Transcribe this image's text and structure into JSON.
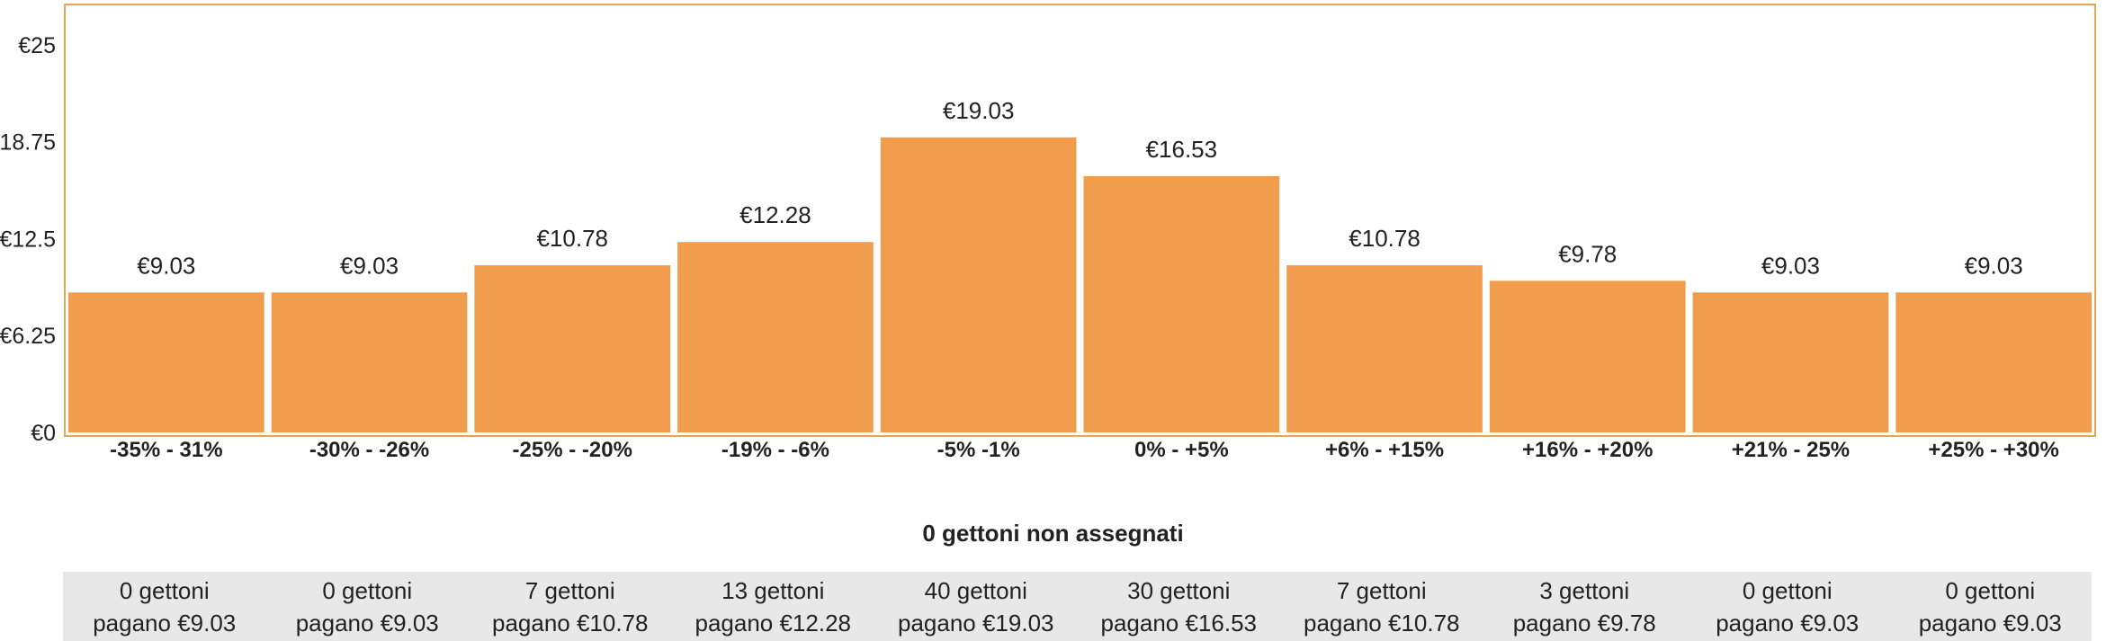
{
  "chart_data": {
    "type": "bar",
    "categories": [
      "-35% - 31%",
      "-30% - -26%",
      "-25% - -20%",
      "-19% - -6%",
      "-5% -1%",
      "0% - +5%",
      "+6% - +15%",
      "+16% - +20%",
      "+21% - 25%",
      "+25% - +30%"
    ],
    "values": [
      9.03,
      9.03,
      10.78,
      12.28,
      19.03,
      16.53,
      10.78,
      9.78,
      9.03,
      9.03
    ],
    "value_labels": [
      "€9.03",
      "€9.03",
      "€10.78",
      "€12.28",
      "€19.03",
      "€16.53",
      "€10.78",
      "€9.78",
      "€9.03",
      "€9.03"
    ],
    "yticks": [
      0,
      6.25,
      12.5,
      18.75,
      25
    ],
    "ytick_labels": [
      "€0",
      "€6.25",
      "€12.5",
      "€18.75",
      "€25"
    ],
    "ylim": [
      0,
      27.6
    ],
    "bar_color": "#f09e4d",
    "frame_color": "#e8a64d",
    "grid": false,
    "legend": "none"
  },
  "summary": "0 gettoni non assegnati",
  "token_cells": [
    {
      "count": "0 gettoni",
      "price": "pagano €9.03"
    },
    {
      "count": "0 gettoni",
      "price": "pagano €9.03"
    },
    {
      "count": "7 gettoni",
      "price": "pagano €10.78"
    },
    {
      "count": "13 gettoni",
      "price": "pagano €12.28"
    },
    {
      "count": "40 gettoni",
      "price": "pagano €19.03"
    },
    {
      "count": "30 gettoni",
      "price": "pagano €16.53"
    },
    {
      "count": "7 gettoni",
      "price": "pagano €10.78"
    },
    {
      "count": "3 gettoni",
      "price": "pagano €9.78"
    },
    {
      "count": "0 gettoni",
      "price": "pagano €9.03"
    },
    {
      "count": "0 gettoni",
      "price": "pagano €9.03"
    }
  ]
}
